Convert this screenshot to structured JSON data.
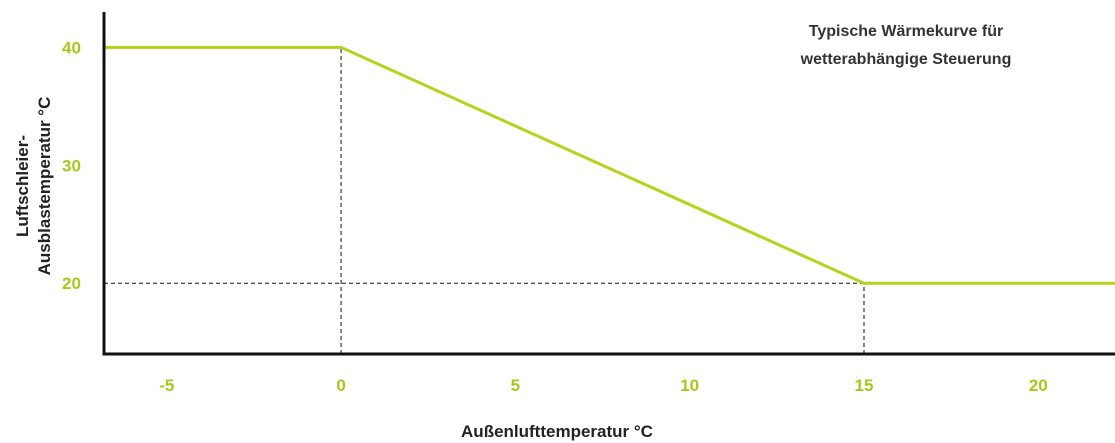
{
  "chart_data": {
    "type": "line",
    "title": [
      "Typische Wärmekurve für",
      "wetterabhängige Steuerung"
    ],
    "xlabel": "Außenlufttemperatur °C",
    "ylabel": [
      "Luftschleier-",
      "Ausblastemperatur °C"
    ],
    "x_ticks": [
      -5,
      0,
      5,
      10,
      15,
      20
    ],
    "y_ticks": [
      20,
      30,
      40
    ],
    "xlim": [
      -6.8,
      22.2
    ],
    "ylim": [
      14,
      43
    ],
    "grid": false,
    "series": [
      {
        "x": [
          -6.8,
          0,
          15,
          22.2
        ],
        "y": [
          40,
          40,
          20,
          20
        ]
      }
    ],
    "reference_lines": [
      {
        "from": [
          0,
          14
        ],
        "to": [
          0,
          40
        ]
      },
      {
        "from": [
          15,
          14
        ],
        "to": [
          15,
          20
        ]
      },
      {
        "from": [
          -6.8,
          20
        ],
        "to": [
          15,
          20
        ]
      }
    ],
    "colors": {
      "line": "#b4d31c",
      "tick_labels": "#a6c81b",
      "axis": "#111111",
      "reference": "#111111"
    }
  }
}
